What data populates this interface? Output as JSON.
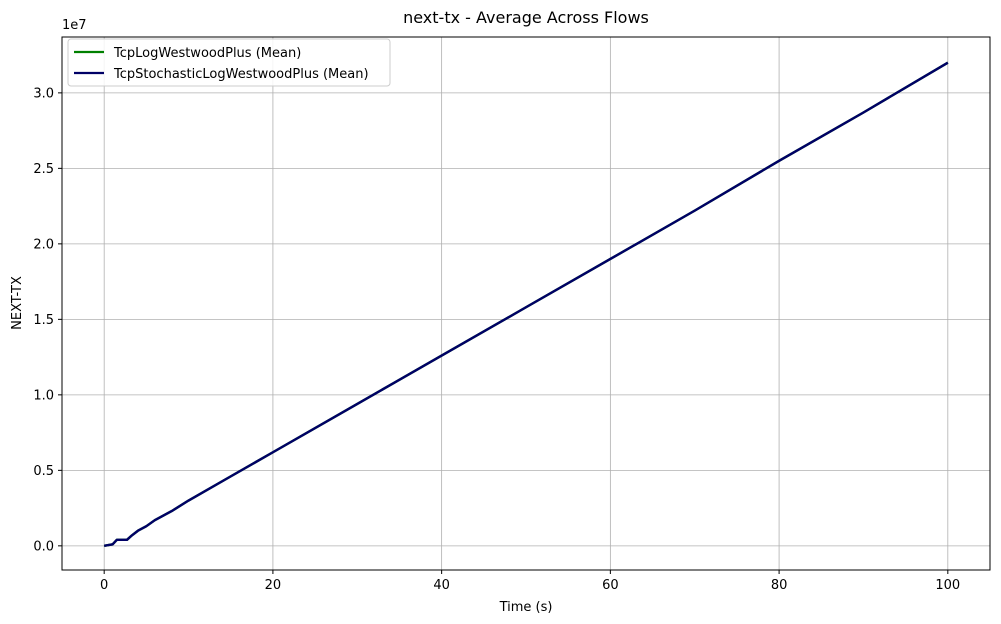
{
  "chart_data": {
    "type": "line",
    "title": "next-tx - Average Across Flows",
    "xlabel": "Time (s)",
    "ylabel": "NEXT-TX",
    "y_offset_label": "1e7",
    "xlim": [
      -5,
      105
    ],
    "ylim": [
      -0.16,
      3.37
    ],
    "x_ticks": [
      0,
      20,
      40,
      60,
      80,
      100
    ],
    "x_tick_labels": [
      "0",
      "20",
      "40",
      "60",
      "80",
      "100"
    ],
    "y_ticks": [
      0.0,
      0.5,
      1.0,
      1.5,
      2.0,
      2.5,
      3.0
    ],
    "y_tick_labels": [
      "0.0",
      "0.5",
      "1.0",
      "1.5",
      "2.0",
      "2.5",
      "3.0"
    ],
    "grid": true,
    "legend_position": "top-left",
    "series": [
      {
        "name": "TcpLogWestwoodPlus (Mean)",
        "color": "#008000",
        "x": [
          0,
          1,
          1.5,
          2,
          2.7,
          3.3,
          4,
          5,
          6,
          8,
          10,
          15,
          20,
          30,
          40,
          50,
          60,
          70,
          80,
          90,
          100
        ],
        "y": [
          0,
          0.01,
          0.04,
          0.04,
          0.04,
          0.07,
          0.1,
          0.13,
          0.17,
          0.23,
          0.3,
          0.46,
          0.62,
          0.94,
          1.26,
          1.58,
          1.9,
          2.22,
          2.55,
          2.87,
          3.2
        ]
      },
      {
        "name": "TcpStochasticLogWestwoodPlus (Mean)",
        "color": "#000066",
        "x": [
          0,
          1,
          1.5,
          2,
          2.7,
          3.3,
          4,
          5,
          6,
          8,
          10,
          15,
          20,
          30,
          40,
          50,
          60,
          70,
          80,
          90,
          100
        ],
        "y": [
          0,
          0.01,
          0.04,
          0.04,
          0.04,
          0.07,
          0.1,
          0.13,
          0.17,
          0.23,
          0.3,
          0.46,
          0.62,
          0.94,
          1.26,
          1.58,
          1.9,
          2.22,
          2.55,
          2.87,
          3.2
        ]
      }
    ]
  }
}
